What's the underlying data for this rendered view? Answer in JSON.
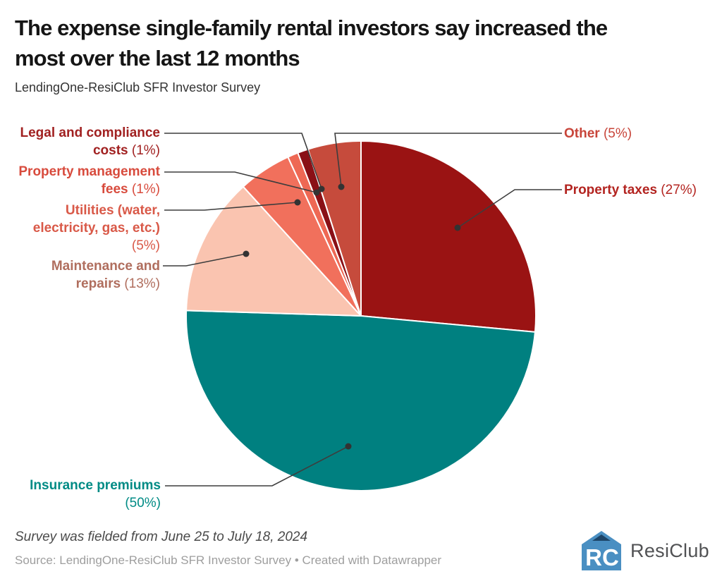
{
  "header": {
    "title_line1": "The expense single-family rental investors say increased the",
    "title_line2": "most over the last 12 months",
    "subtitle": "LendingOne-ResiClub SFR Investor Survey"
  },
  "chart_data": {
    "type": "pie",
    "title": "The expense single-family rental investors say increased the most over the last 12 months",
    "subtitle": "LendingOne-ResiClub SFR Investor Survey",
    "legend_position": "callout-labels",
    "start_angle_deg_from_top": 0,
    "direction": "clockwise",
    "values_sum": 102,
    "slices": [
      {
        "id": "property_taxes",
        "label": "Property taxes",
        "value": 27,
        "pct_text": "(27%)",
        "color": "#9a1313",
        "label_color": "#b32420"
      },
      {
        "id": "insurance",
        "label": "Insurance premiums",
        "value": 50,
        "pct_text": "(50%)",
        "color": "#008080",
        "label_color": "#008b85"
      },
      {
        "id": "maintenance",
        "label": "Maintenance and repairs",
        "value": 13,
        "pct_text": "(13%)",
        "color": "#fac4b0",
        "label_color": "#b06e5e"
      },
      {
        "id": "utilities",
        "label": "Utilities (water, electricity, gas, etc.)",
        "value": 5,
        "pct_text": "(5%)",
        "color": "#f1705c",
        "label_color": "#d95948"
      },
      {
        "id": "prop_mgmt",
        "label": "Property management fees",
        "value": 1,
        "pct_text": "(1%)",
        "color": "#ee6854",
        "label_color": "#d84b3d"
      },
      {
        "id": "legal",
        "label": "Legal and compliance costs",
        "value": 1,
        "pct_text": "(1%)",
        "color": "#8a1016",
        "label_color": "#a12121"
      },
      {
        "id": "other",
        "label": "Other",
        "value": 5,
        "pct_text": "(5%)",
        "color": "#c64b3c",
        "label_color": "#c8453a"
      }
    ]
  },
  "callouts": [
    {
      "slice": "legal",
      "lines": [
        [
          {
            "t": "Legal and compliance",
            "b": true
          }
        ],
        [
          {
            "t": "costs ",
            "b": true
          },
          {
            "t": "(1%)",
            "b": false
          }
        ]
      ]
    },
    {
      "slice": "prop_mgmt",
      "lines": [
        [
          {
            "t": "Property management",
            "b": true
          }
        ],
        [
          {
            "t": "fees ",
            "b": true
          },
          {
            "t": "(1%)",
            "b": false
          }
        ]
      ]
    },
    {
      "slice": "utilities",
      "lines": [
        [
          {
            "t": "Utilities (water,",
            "b": true
          }
        ],
        [
          {
            "t": "electricity, gas, etc.)",
            "b": true
          }
        ],
        [
          {
            "t": "(5%)",
            "b": false
          }
        ]
      ]
    },
    {
      "slice": "maintenance",
      "lines": [
        [
          {
            "t": "Maintenance and",
            "b": true
          }
        ],
        [
          {
            "t": "repairs ",
            "b": true
          },
          {
            "t": "(13%)",
            "b": false
          }
        ]
      ]
    },
    {
      "slice": "insurance",
      "lines": [
        [
          {
            "t": "Insurance premiums",
            "b": true
          }
        ],
        [
          {
            "t": "(50%)",
            "b": false
          }
        ]
      ]
    },
    {
      "slice": "other",
      "lines": [
        [
          {
            "t": "Other ",
            "b": true
          },
          {
            "t": "(5%)",
            "b": false
          }
        ]
      ]
    },
    {
      "slice": "property_taxes",
      "lines": [
        [
          {
            "t": "Property taxes ",
            "b": true
          },
          {
            "t": "(27%)",
            "b": false
          }
        ]
      ]
    }
  ],
  "footer": {
    "note": "Survey was fielded from June 25 to July 18, 2024",
    "source": "Source: LendingOne-ResiClub SFR Investor Survey • Created with Datawrapper"
  },
  "brand": {
    "name": "ResiClub",
    "logo_color": "#4a8fc2",
    "logo_accent": "#1d4568"
  }
}
